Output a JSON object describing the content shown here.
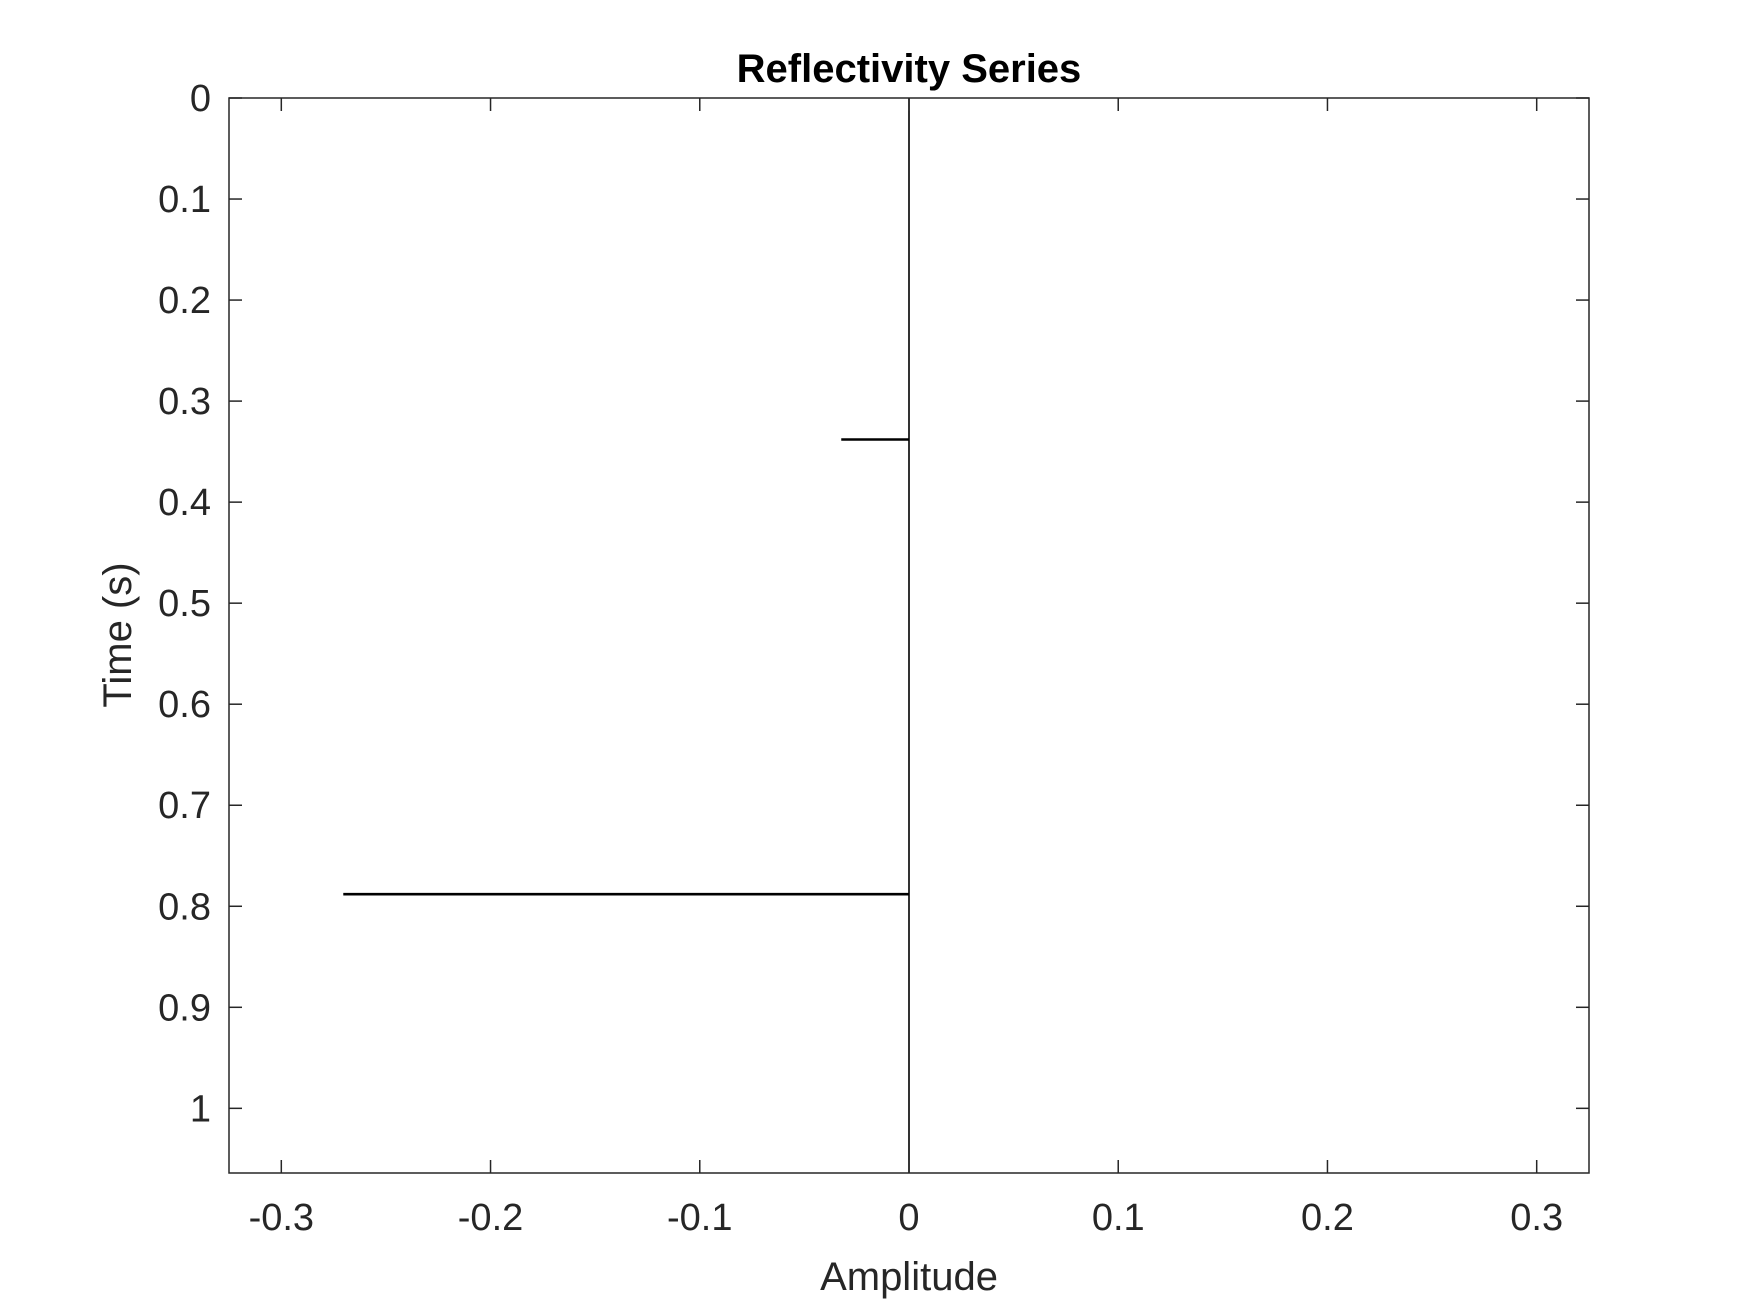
{
  "chart_data": {
    "type": "line",
    "title": "Reflectivity Series",
    "xlabel": "Amplitude",
    "ylabel": "Time (s)",
    "xlim": [
      -0.325,
      0.325
    ],
    "ylim": [
      0,
      1.064
    ],
    "y_reversed": true,
    "x_ticks": [
      -0.3,
      -0.2,
      -0.1,
      0,
      0.1,
      0.2,
      0.3
    ],
    "x_tick_labels": [
      "-0.3",
      "-0.2",
      "-0.1",
      "0",
      "0.1",
      "0.2",
      "0.3"
    ],
    "y_ticks": [
      0,
      0.1,
      0.2,
      0.3,
      0.4,
      0.5,
      0.6,
      0.7,
      0.8,
      0.9,
      1
    ],
    "y_tick_labels": [
      "0",
      "0.1",
      "0.2",
      "0.3",
      "0.4",
      "0.5",
      "0.6",
      "0.7",
      "0.8",
      "0.9",
      "1"
    ],
    "grid": false,
    "series": [
      {
        "color": "#000000",
        "points": [
          {
            "t": 0,
            "amp": 0
          },
          {
            "t": 0.3375,
            "amp": 0
          },
          {
            "t": 0.3375,
            "amp": -0.032
          },
          {
            "t": 0.3385,
            "amp": -0.032
          },
          {
            "t": 0.3385,
            "amp": 0
          },
          {
            "t": 0.7875,
            "amp": 0
          },
          {
            "t": 0.7875,
            "amp": -0.27
          },
          {
            "t": 0.7885,
            "amp": -0.27
          },
          {
            "t": 0.7885,
            "amp": 0
          },
          {
            "t": 1.064,
            "amp": 0
          }
        ]
      }
    ],
    "colors": {
      "axes": "#262626",
      "trace": "#000000",
      "background": "#ffffff"
    }
  }
}
